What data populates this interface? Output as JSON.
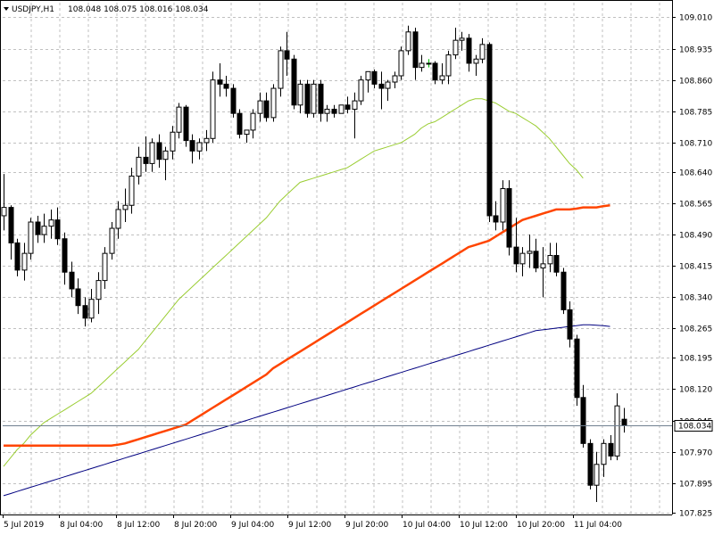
{
  "header": {
    "symbol": "USDJPY,H1",
    "ohlc": "108.048 108.075 108.016 108.034"
  },
  "colors": {
    "grid": "#c0c0c0",
    "axis": "#000000",
    "bull_fill": "#ffffff",
    "bear_fill": "#000000",
    "candle_outline": "#000000",
    "doji": "#00c000",
    "ma_fast": "#9acd32",
    "ma_mid": "#ff4500",
    "ma_slow": "#000080",
    "price_line": "#708090",
    "price_tag_bg": "#ffffff"
  },
  "chart_data": {
    "type": "candlestick",
    "title": "USDJPY,H1",
    "ylim": [
      107.82,
      109.045
    ],
    "y_ticks": [
      "109.010",
      "108.935",
      "108.860",
      "108.785",
      "108.710",
      "108.640",
      "108.565",
      "108.490",
      "108.415",
      "108.340",
      "108.265",
      "108.195",
      "108.120",
      "108.045",
      "107.970",
      "107.895",
      "107.825"
    ],
    "x_ticks": [
      "5 Jul 2019",
      "8 Jul 04:00",
      "8 Jul 12:00",
      "8 Jul 20:00",
      "9 Jul 04:00",
      "9 Jul 12:00",
      "9 Jul 20:00",
      "10 Jul 04:00",
      "10 Jul 12:00",
      "10 Jul 20:00",
      "11 Jul 04:00"
    ],
    "current_price": "108.034",
    "grid": true,
    "candles": [
      [
        108.535,
        108.635,
        108.5,
        108.555
      ],
      [
        108.555,
        108.56,
        108.43,
        108.47
      ],
      [
        108.47,
        108.48,
        108.39,
        108.405
      ],
      [
        108.405,
        108.47,
        108.38,
        108.445
      ],
      [
        108.445,
        108.53,
        108.43,
        108.52
      ],
      [
        108.52,
        108.535,
        108.47,
        108.49
      ],
      [
        108.49,
        108.54,
        108.47,
        108.51
      ],
      [
        108.51,
        108.55,
        108.48,
        108.525
      ],
      [
        108.525,
        108.555,
        108.465,
        108.48
      ],
      [
        108.48,
        108.495,
        108.37,
        108.4
      ],
      [
        108.4,
        108.425,
        108.34,
        108.36
      ],
      [
        108.36,
        108.385,
        108.3,
        108.32
      ],
      [
        108.32,
        108.34,
        108.27,
        108.29
      ],
      [
        108.29,
        108.36,
        108.28,
        108.335
      ],
      [
        108.335,
        108.4,
        108.3,
        108.38
      ],
      [
        108.38,
        108.46,
        108.36,
        108.445
      ],
      [
        108.445,
        108.52,
        108.43,
        108.505
      ],
      [
        108.505,
        108.57,
        108.48,
        108.55
      ],
      [
        108.55,
        108.6,
        108.52,
        108.56
      ],
      [
        108.56,
        108.65,
        108.54,
        108.63
      ],
      [
        108.63,
        108.7,
        108.61,
        108.675
      ],
      [
        108.675,
        108.725,
        108.64,
        108.66
      ],
      [
        108.66,
        108.72,
        108.64,
        108.71
      ],
      [
        108.71,
        108.73,
        108.65,
        108.67
      ],
      [
        108.67,
        108.7,
        108.62,
        108.69
      ],
      [
        108.69,
        108.75,
        108.67,
        108.735
      ],
      [
        108.735,
        108.805,
        108.72,
        108.795
      ],
      [
        108.795,
        108.8,
        108.7,
        108.715
      ],
      [
        108.715,
        108.73,
        108.66,
        108.69
      ],
      [
        108.69,
        108.72,
        108.67,
        108.71
      ],
      [
        108.71,
        108.74,
        108.69,
        108.72
      ],
      [
        108.72,
        108.88,
        108.71,
        108.86
      ],
      [
        108.86,
        108.9,
        108.82,
        108.85
      ],
      [
        108.85,
        108.87,
        108.82,
        108.84
      ],
      [
        108.84,
        108.85,
        108.77,
        108.78
      ],
      [
        108.78,
        108.79,
        108.72,
        108.73
      ],
      [
        108.73,
        108.74,
        108.71,
        108.74
      ],
      [
        108.74,
        108.79,
        108.72,
        108.78
      ],
      [
        108.78,
        108.83,
        108.76,
        108.81
      ],
      [
        108.81,
        108.83,
        108.76,
        108.77
      ],
      [
        108.77,
        108.85,
        108.76,
        108.84
      ],
      [
        108.84,
        108.94,
        108.82,
        108.93
      ],
      [
        108.93,
        108.975,
        108.87,
        108.91
      ],
      [
        108.91,
        108.92,
        108.79,
        108.8
      ],
      [
        108.8,
        108.86,
        108.78,
        108.85
      ],
      [
        108.85,
        108.86,
        108.77,
        108.78
      ],
      [
        108.78,
        108.86,
        108.77,
        108.85
      ],
      [
        108.85,
        108.86,
        108.76,
        108.78
      ],
      [
        108.78,
        108.8,
        108.76,
        108.79
      ],
      [
        108.79,
        108.8,
        108.77,
        108.78
      ],
      [
        108.78,
        108.8,
        108.78,
        108.8
      ],
      [
        108.8,
        108.82,
        108.78,
        108.79
      ],
      [
        108.79,
        108.83,
        108.72,
        108.81
      ],
      [
        108.81,
        108.87,
        108.8,
        108.86
      ],
      [
        108.86,
        108.88,
        108.83,
        108.88
      ],
      [
        108.88,
        108.885,
        108.84,
        108.85
      ],
      [
        108.85,
        108.88,
        108.79,
        108.84
      ],
      [
        108.84,
        108.86,
        108.81,
        108.855
      ],
      [
        108.855,
        108.88,
        108.84,
        108.87
      ],
      [
        108.87,
        108.94,
        108.86,
        108.93
      ],
      [
        108.93,
        108.99,
        108.92,
        108.975
      ],
      [
        108.975,
        108.985,
        108.86,
        108.89
      ],
      [
        108.89,
        108.92,
        108.88,
        108.9
      ],
      [
        108.9,
        108.91,
        108.89,
        108.9
      ],
      [
        108.9,
        108.905,
        108.85,
        108.86
      ],
      [
        108.86,
        108.9,
        108.85,
        108.87
      ],
      [
        108.87,
        108.93,
        108.85,
        108.92
      ],
      [
        108.92,
        108.985,
        108.91,
        108.955
      ],
      [
        108.955,
        108.975,
        108.93,
        108.96
      ],
      [
        108.96,
        108.97,
        108.88,
        108.9
      ],
      [
        108.9,
        108.92,
        108.87,
        108.91
      ],
      [
        108.91,
        108.96,
        108.9,
        108.945
      ],
      [
        108.945,
        108.95,
        108.52,
        108.535
      ],
      [
        108.535,
        108.57,
        108.5,
        108.52
      ],
      [
        108.52,
        108.62,
        108.5,
        108.6
      ],
      [
        108.6,
        108.62,
        108.44,
        108.46
      ],
      [
        108.46,
        108.53,
        108.4,
        108.42
      ],
      [
        108.42,
        108.46,
        108.39,
        108.445
      ],
      [
        108.445,
        108.49,
        108.41,
        108.45
      ],
      [
        108.45,
        108.48,
        108.4,
        108.41
      ],
      [
        108.41,
        108.46,
        108.34,
        108.42
      ],
      [
        108.42,
        108.47,
        108.4,
        108.44
      ],
      [
        108.44,
        108.47,
        108.39,
        108.4
      ],
      [
        108.4,
        108.41,
        108.3,
        108.31
      ],
      [
        108.31,
        108.33,
        108.22,
        108.24
      ],
      [
        108.24,
        108.25,
        108.08,
        108.1
      ],
      [
        108.1,
        108.13,
        107.98,
        107.99
      ],
      [
        107.99,
        108.0,
        107.88,
        107.89
      ],
      [
        107.89,
        107.97,
        107.85,
        107.94
      ],
      [
        107.94,
        108.0,
        107.91,
        107.99
      ],
      [
        107.99,
        108.01,
        107.95,
        107.96
      ],
      [
        107.96,
        108.11,
        107.95,
        108.08
      ],
      [
        108.048,
        108.075,
        108.016,
        108.034
      ]
    ],
    "series": [
      {
        "color": "#9acd32",
        "values": [
          107.935,
          107.955,
          107.975,
          107.99,
          108.01,
          108.025,
          108.04,
          108.05,
          108.06,
          108.07,
          108.08,
          108.09,
          108.1,
          108.11,
          108.125,
          108.14,
          108.155,
          108.17,
          108.185,
          108.2,
          108.215,
          108.235,
          108.255,
          108.275,
          108.295,
          108.315,
          108.335,
          108.35,
          108.365,
          108.38,
          108.395,
          108.41,
          108.425,
          108.44,
          108.455,
          108.47,
          108.485,
          108.5,
          108.515,
          108.53,
          108.55,
          108.57,
          108.585,
          108.6,
          108.615,
          108.62,
          108.625,
          108.63,
          108.635,
          108.64,
          108.645,
          108.65,
          108.66,
          108.67,
          108.68,
          108.69,
          108.695,
          108.7,
          108.705,
          108.71,
          108.72,
          108.73,
          108.745,
          108.755,
          108.76,
          108.77,
          108.78,
          108.79,
          108.8,
          108.81,
          108.815,
          108.815,
          108.81,
          108.805,
          108.795,
          108.785,
          108.78,
          108.77,
          108.76,
          108.75,
          108.735,
          108.72,
          108.7,
          108.68,
          108.66,
          108.645,
          108.625
        ]
      },
      {
        "color": "#ff4500",
        "values": [
          107.985,
          107.985,
          107.985,
          107.985,
          107.985,
          107.985,
          107.985,
          107.985,
          107.985,
          107.985,
          107.985,
          107.985,
          107.985,
          107.985,
          107.985,
          107.985,
          107.985,
          107.987,
          107.99,
          107.995,
          108.0,
          108.005,
          108.01,
          108.015,
          108.02,
          108.025,
          108.03,
          108.035,
          108.045,
          108.055,
          108.065,
          108.075,
          108.085,
          108.095,
          108.105,
          108.115,
          108.125,
          108.135,
          108.145,
          108.155,
          108.17,
          108.18,
          108.19,
          108.2,
          108.21,
          108.22,
          108.23,
          108.24,
          108.25,
          108.26,
          108.27,
          108.28,
          108.29,
          108.3,
          108.31,
          108.32,
          108.33,
          108.34,
          108.35,
          108.36,
          108.37,
          108.38,
          108.39,
          108.4,
          108.41,
          108.42,
          108.43,
          108.44,
          108.45,
          108.46,
          108.465,
          108.47,
          108.475,
          108.485,
          108.495,
          108.505,
          108.515,
          108.525,
          108.53,
          108.535,
          108.54,
          108.545,
          108.55,
          108.55,
          108.55,
          108.552,
          108.555,
          108.555,
          108.555,
          108.558,
          108.56
        ]
      },
      {
        "color": "#000080",
        "values": [
          107.865,
          107.87,
          107.875,
          107.88,
          107.885,
          107.89,
          107.895,
          107.9,
          107.905,
          107.91,
          107.915,
          107.92,
          107.925,
          107.93,
          107.935,
          107.94,
          107.945,
          107.95,
          107.955,
          107.96,
          107.965,
          107.97,
          107.975,
          107.98,
          107.985,
          107.99,
          107.995,
          108.0,
          108.005,
          108.01,
          108.015,
          108.02,
          108.025,
          108.03,
          108.035,
          108.04,
          108.045,
          108.05,
          108.055,
          108.06,
          108.065,
          108.07,
          108.075,
          108.08,
          108.085,
          108.09,
          108.095,
          108.1,
          108.105,
          108.11,
          108.115,
          108.12,
          108.125,
          108.13,
          108.135,
          108.14,
          108.145,
          108.15,
          108.155,
          108.16,
          108.165,
          108.17,
          108.175,
          108.18,
          108.185,
          108.19,
          108.195,
          108.2,
          108.205,
          108.21,
          108.215,
          108.22,
          108.225,
          108.23,
          108.235,
          108.24,
          108.245,
          108.25,
          108.255,
          108.26,
          108.262,
          108.264,
          108.266,
          108.268,
          108.27,
          108.272,
          108.274,
          108.274,
          108.273,
          108.272,
          108.27
        ]
      }
    ]
  }
}
